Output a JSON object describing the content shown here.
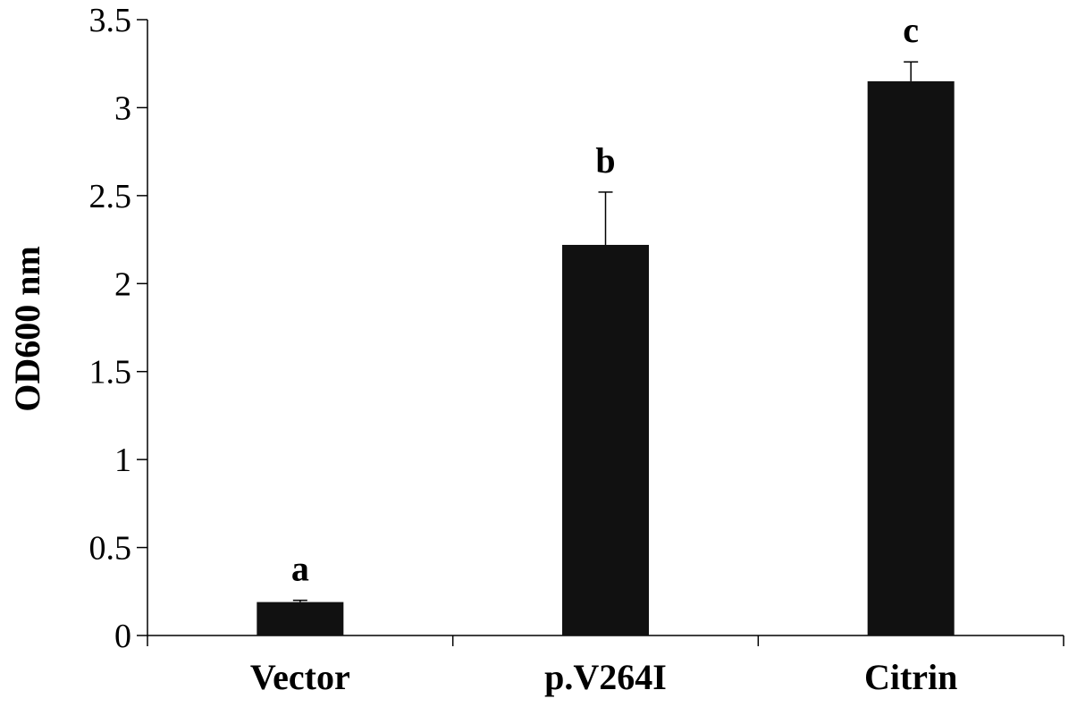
{
  "chart_data": {
    "type": "bar",
    "ylabel": "OD600 nm",
    "xlabel": "",
    "categories": [
      "Vector",
      "p.V264I",
      "Citrin"
    ],
    "values": [
      0.19,
      2.22,
      3.15
    ],
    "errors": [
      0.01,
      0.3,
      0.11
    ],
    "significance_letters": [
      "a",
      "b",
      "c"
    ],
    "ylim": [
      0,
      3.5
    ],
    "yticks": [
      0,
      0.5,
      1,
      1.5,
      2,
      2.5,
      3,
      3.5
    ],
    "ytick_labels": [
      "0",
      "0.5",
      "1",
      "1.5",
      "2",
      "2.5",
      "3",
      "3.5"
    ],
    "grid": false,
    "legend": "none",
    "bar_color": "#111111"
  }
}
